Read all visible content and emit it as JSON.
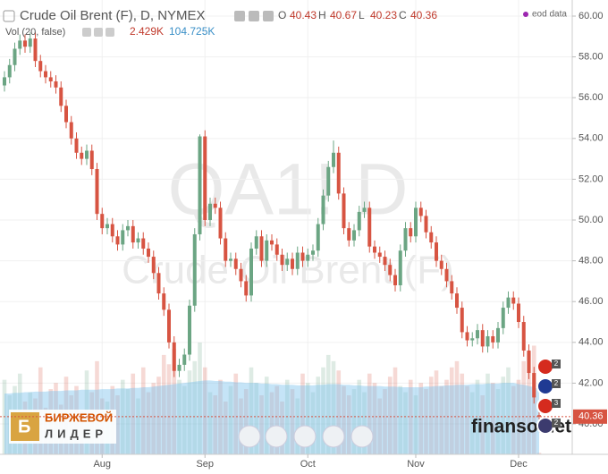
{
  "chart_data": {
    "type": "candlestick",
    "title": "Crude Oil Brent (F), D, NYMEX",
    "source_note": "eod data",
    "watermark_symbol": "QA1! D",
    "watermark_name": "Crude Oil Brent (F)",
    "ohlc_keys": [
      "O",
      "H",
      "L",
      "C"
    ],
    "up_color": "#6ba583",
    "down_color": "#d75442",
    "candles": [
      [
        56.6,
        57.3,
        56.3,
        57.0
      ],
      [
        57.0,
        57.9,
        56.7,
        57.6
      ],
      [
        57.6,
        58.7,
        57.3,
        58.4
      ],
      [
        58.4,
        59.1,
        58.1,
        58.8
      ],
      [
        58.8,
        59.1,
        58.2,
        58.5
      ],
      [
        58.5,
        59.2,
        58.2,
        58.9
      ],
      [
        58.9,
        59.2,
        57.5,
        57.8
      ],
      [
        57.8,
        58.1,
        57.0,
        57.3
      ],
      [
        57.3,
        57.6,
        56.7,
        57.0
      ],
      [
        57.0,
        57.3,
        56.5,
        56.8
      ],
      [
        56.8,
        57.1,
        56.2,
        56.5
      ],
      [
        56.5,
        56.8,
        55.3,
        55.6
      ],
      [
        55.6,
        55.9,
        54.5,
        54.8
      ],
      [
        54.8,
        55.1,
        53.7,
        54.0
      ],
      [
        54.0,
        54.3,
        53.0,
        53.3
      ],
      [
        53.3,
        53.6,
        52.7,
        53.0
      ],
      [
        53.0,
        53.7,
        52.7,
        53.4
      ],
      [
        53.4,
        53.7,
        52.2,
        52.5
      ],
      [
        52.5,
        52.8,
        50.0,
        50.3
      ],
      [
        50.3,
        50.6,
        49.3,
        49.6
      ],
      [
        49.6,
        50.1,
        49.3,
        49.8
      ],
      [
        49.8,
        50.1,
        48.9,
        49.2
      ],
      [
        49.2,
        49.5,
        48.5,
        48.8
      ],
      [
        48.8,
        49.8,
        48.5,
        49.5
      ],
      [
        49.5,
        50.0,
        49.2,
        49.7
      ],
      [
        49.7,
        50.0,
        48.6,
        48.9
      ],
      [
        48.9,
        49.4,
        48.6,
        49.1
      ],
      [
        49.1,
        49.4,
        48.3,
        48.6
      ],
      [
        48.6,
        48.9,
        47.9,
        48.2
      ],
      [
        48.2,
        48.5,
        47.1,
        47.4
      ],
      [
        47.4,
        47.7,
        46.1,
        46.4
      ],
      [
        46.4,
        46.7,
        45.3,
        45.6
      ],
      [
        45.6,
        45.9,
        43.7,
        44.0
      ],
      [
        44.0,
        44.3,
        42.3,
        42.6
      ],
      [
        42.6,
        43.2,
        42.3,
        42.9
      ],
      [
        42.9,
        43.7,
        42.6,
        43.4
      ],
      [
        43.4,
        46.1,
        43.1,
        45.8
      ],
      [
        45.8,
        49.6,
        45.5,
        49.3
      ],
      [
        49.3,
        54.2,
        49.0,
        54.1
      ],
      [
        54.1,
        54.4,
        49.7,
        50.0
      ],
      [
        50.0,
        51.1,
        49.7,
        50.8
      ],
      [
        50.8,
        51.1,
        50.3,
        50.6
      ],
      [
        50.6,
        50.9,
        48.8,
        49.1
      ],
      [
        49.1,
        49.4,
        47.7,
        48.0
      ],
      [
        48.0,
        48.4,
        47.7,
        48.1
      ],
      [
        48.1,
        48.4,
        47.3,
        47.6
      ],
      [
        47.6,
        47.9,
        46.7,
        47.0
      ],
      [
        47.0,
        47.3,
        46.0,
        46.3
      ],
      [
        46.3,
        48.9,
        46.0,
        48.6
      ],
      [
        48.6,
        49.5,
        48.3,
        49.2
      ],
      [
        49.2,
        49.5,
        47.7,
        48.0
      ],
      [
        48.0,
        49.3,
        47.7,
        49.0
      ],
      [
        49.0,
        49.3,
        48.5,
        48.8
      ],
      [
        48.8,
        49.1,
        48.0,
        48.3
      ],
      [
        48.3,
        48.6,
        47.5,
        47.8
      ],
      [
        47.8,
        48.4,
        47.5,
        48.1
      ],
      [
        48.1,
        48.4,
        47.3,
        47.6
      ],
      [
        47.6,
        48.7,
        47.3,
        48.4
      ],
      [
        48.4,
        48.7,
        47.7,
        48.0
      ],
      [
        48.0,
        48.6,
        47.7,
        48.3
      ],
      [
        48.3,
        48.8,
        48.0,
        48.5
      ],
      [
        48.5,
        50.1,
        48.2,
        49.8
      ],
      [
        49.8,
        51.5,
        49.5,
        51.2
      ],
      [
        51.2,
        52.9,
        50.9,
        52.6
      ],
      [
        52.6,
        53.9,
        52.3,
        53.3
      ],
      [
        53.3,
        53.6,
        51.0,
        51.3
      ],
      [
        51.3,
        51.6,
        49.3,
        49.6
      ],
      [
        49.6,
        49.9,
        48.7,
        49.0
      ],
      [
        49.0,
        49.8,
        48.7,
        49.5
      ],
      [
        49.5,
        50.7,
        49.2,
        50.4
      ],
      [
        50.4,
        50.9,
        50.1,
        50.6
      ],
      [
        50.6,
        50.9,
        48.4,
        48.7
      ],
      [
        48.7,
        49.0,
        48.1,
        48.4
      ],
      [
        48.4,
        48.7,
        47.9,
        48.2
      ],
      [
        48.2,
        48.5,
        47.5,
        47.8
      ],
      [
        47.8,
        48.1,
        47.0,
        47.3
      ],
      [
        47.3,
        47.6,
        46.5,
        46.8
      ],
      [
        46.8,
        48.8,
        46.5,
        48.5
      ],
      [
        48.5,
        49.9,
        48.2,
        49.6
      ],
      [
        49.6,
        49.9,
        48.9,
        49.2
      ],
      [
        49.2,
        50.9,
        48.9,
        50.6
      ],
      [
        50.6,
        50.9,
        49.9,
        50.2
      ],
      [
        50.2,
        50.5,
        49.1,
        49.4
      ],
      [
        49.4,
        49.7,
        48.6,
        48.9
      ],
      [
        48.9,
        49.2,
        47.7,
        48.0
      ],
      [
        48.0,
        48.3,
        47.3,
        47.6
      ],
      [
        47.6,
        47.9,
        46.7,
        47.0
      ],
      [
        47.0,
        47.3,
        46.1,
        46.4
      ],
      [
        46.4,
        46.7,
        45.4,
        45.7
      ],
      [
        45.7,
        46.0,
        44.2,
        44.5
      ],
      [
        44.5,
        44.8,
        43.8,
        44.1
      ],
      [
        44.1,
        44.5,
        43.8,
        44.2
      ],
      [
        44.2,
        44.9,
        43.9,
        44.6
      ],
      [
        44.6,
        44.9,
        43.5,
        43.8
      ],
      [
        43.8,
        44.6,
        43.5,
        44.3
      ],
      [
        44.3,
        44.6,
        43.7,
        44.0
      ],
      [
        44.0,
        45.0,
        43.7,
        44.7
      ],
      [
        44.7,
        46.0,
        44.4,
        45.7
      ],
      [
        45.7,
        46.5,
        45.4,
        46.2
      ],
      [
        46.2,
        46.5,
        45.6,
        45.9
      ],
      [
        45.9,
        46.2,
        44.7,
        45.0
      ],
      [
        45.0,
        45.3,
        43.3,
        43.6
      ],
      [
        43.6,
        43.9,
        42.2,
        42.5
      ],
      [
        42.5,
        42.8,
        41.0,
        41.3
      ],
      [
        40.43,
        40.67,
        40.23,
        40.36
      ]
    ],
    "volume_title": "Vol (20, false)",
    "volume": [
      120,
      95,
      110,
      130,
      85,
      100,
      90,
      140,
      75,
      105,
      115,
      80,
      125,
      95,
      110,
      70,
      135,
      100,
      150,
      90,
      85,
      110,
      95,
      120,
      105,
      130,
      90,
      140,
      100,
      115,
      125,
      160,
      145,
      170,
      120,
      110,
      135,
      150,
      180,
      140,
      100,
      95,
      120,
      85,
      110,
      130,
      90,
      105,
      140,
      115,
      95,
      125,
      100,
      110,
      85,
      120,
      105,
      90,
      130,
      115,
      100,
      125,
      140,
      160,
      150,
      135,
      110,
      95,
      105,
      120,
      100,
      130,
      115,
      90,
      105,
      125,
      140,
      110,
      100,
      120,
      95,
      115,
      105,
      125,
      135,
      110,
      120,
      140,
      150,
      130,
      110,
      100,
      120,
      95,
      130,
      115,
      105,
      125,
      140,
      110,
      120,
      150,
      165,
      175,
      2.429
    ],
    "volume_ma": [
      98,
      98,
      99,
      99,
      100,
      100,
      101,
      101,
      101,
      102,
      102,
      102,
      103,
      103,
      103,
      104,
      104,
      104,
      104,
      105,
      105,
      105,
      106,
      106,
      106,
      107,
      107,
      108,
      108,
      109,
      110,
      111,
      112,
      113,
      114,
      115,
      116,
      117,
      118,
      119,
      119,
      118,
      118,
      117,
      117,
      116,
      116,
      115,
      115,
      115,
      114,
      114,
      113,
      113,
      112,
      112,
      112,
      111,
      111,
      111,
      111,
      112,
      112,
      113,
      113,
      113,
      112,
      112,
      111,
      111,
      110,
      110,
      110,
      110,
      109,
      109,
      109,
      108,
      108,
      108,
      108,
      108,
      109,
      109,
      110,
      110,
      111,
      111,
      112,
      112,
      112,
      113,
      113,
      113,
      114,
      114,
      114,
      115,
      115,
      115,
      113,
      112,
      110,
      108,
      104.725
    ],
    "volume_last_label": "2.429K",
    "volume_ma_last_label": "104.725K",
    "volume_color": "#7ec3ee",
    "ylim": [
      38.51,
      60.79
    ],
    "yticks": [
      {
        "value": 40,
        "label": "40.00"
      },
      {
        "value": 42,
        "label": "42.00"
      },
      {
        "value": 44,
        "label": "44.00"
      },
      {
        "value": 46,
        "label": "46.00"
      },
      {
        "value": 48,
        "label": "48.00"
      },
      {
        "value": 50,
        "label": "50.00"
      },
      {
        "value": 52,
        "label": "52.00"
      },
      {
        "value": 54,
        "label": "54.00"
      },
      {
        "value": 56,
        "label": "56.00"
      },
      {
        "value": 58,
        "label": "58.00"
      },
      {
        "value": 60,
        "label": "60.00"
      }
    ],
    "xticks": [
      {
        "value": 19,
        "label": "Aug"
      },
      {
        "value": 39,
        "label": "Sep"
      },
      {
        "value": 59,
        "label": "Oct"
      },
      {
        "value": 80,
        "label": "Nov"
      },
      {
        "value": 100,
        "label": "Dec"
      }
    ],
    "grid": true,
    "event_badges": [
      "2",
      "2",
      "3",
      "2"
    ]
  },
  "branding": {
    "logo_top": "БИРЖЕВОЙ",
    "logo_bottom": "ЛИДЕР",
    "site": "finanso.net"
  }
}
